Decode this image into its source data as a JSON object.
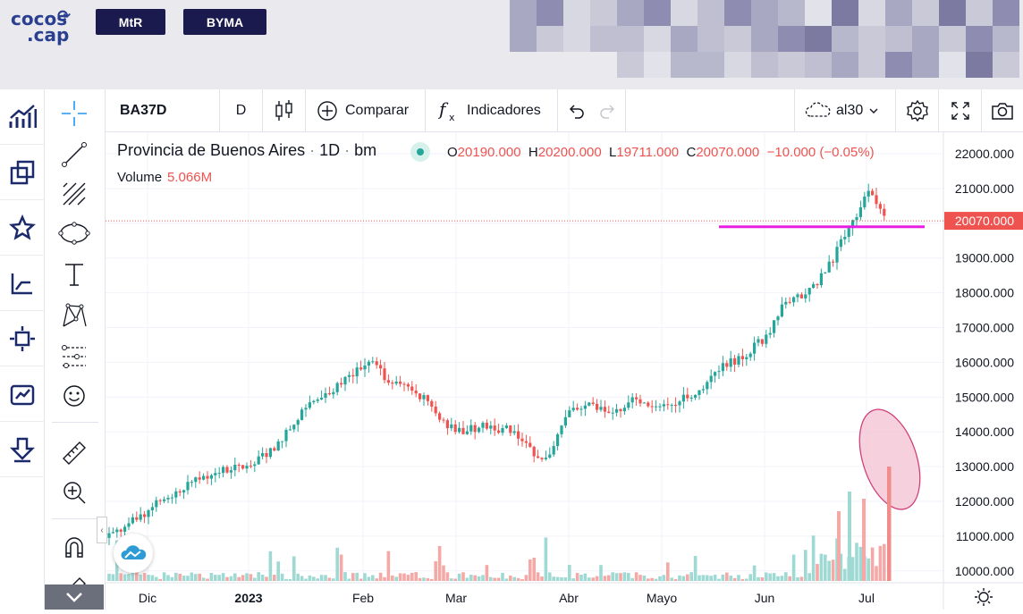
{
  "topbar": {
    "logo_line1": "cocos",
    "logo_line2": ".cap",
    "buttons": [
      {
        "label": "MtR"
      },
      {
        "label": "BYMA"
      }
    ]
  },
  "toolbar": {
    "symbol": "BA37D",
    "interval": "D",
    "compare_label": "Comparar",
    "indicators_label": "Indicadores",
    "layout_name": "al30"
  },
  "legend": {
    "title": "Provincia de Buenos Aires",
    "interval": "1D",
    "exchange": "bm",
    "open_label": "O",
    "open": "20190.000",
    "high_label": "H",
    "high": "20200.000",
    "low_label": "L",
    "low": "19711.000",
    "close_label": "C",
    "close": "20070.000",
    "change": "−10.000 (−0.05%)",
    "volume_label": "Volume",
    "volume": "5.066M"
  },
  "colors": {
    "up": "#26a69a",
    "down": "#ef5350",
    "hline": "#e91ee3",
    "ellipse": "#f3c1d1"
  },
  "chart_data": {
    "type": "candlestick",
    "y_ticks": [
      "22000.000",
      "21000.000",
      "19000.000",
      "18000.000",
      "17000.000",
      "16000.000",
      "15000.000",
      "14000.000",
      "13000.000",
      "12000.000",
      "11000.000",
      "10000.000"
    ],
    "price_label": "20070.000",
    "hline_price": 19900,
    "ylim": [
      9800,
      22500
    ],
    "x_labels": [
      "Dic",
      "2023",
      "Feb",
      "Mar",
      "Abr",
      "Mayo",
      "Jun",
      "Jul"
    ],
    "last_close": 20070
  }
}
